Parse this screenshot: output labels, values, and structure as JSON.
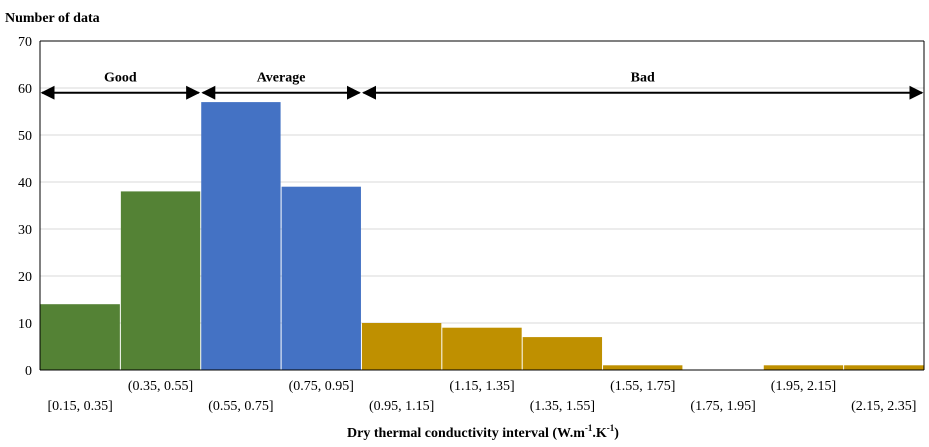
{
  "chart_data": {
    "type": "bar",
    "ylabel": "Number of data",
    "xlabel": "Dry thermal conductivity interval (W.m",
    "xlabel_sup1": "-1",
    "xlabel_mid": ".K",
    "xlabel_sup2": "-1",
    "xlabel_end": ")",
    "ylim": [
      0,
      70
    ],
    "yticks": [
      "0",
      "10",
      "20",
      "30",
      "40",
      "50",
      "60",
      "70"
    ],
    "grid": true,
    "categories": [
      "[0.15, 0.35]",
      "(0.35, 0.55]",
      "(0.55, 0.75]",
      "(0.75, 0.95]",
      "(0.95, 1.15]",
      "(1.15, 1.35]",
      "(1.35, 1.55]",
      "(1.55, 1.75]",
      "(1.75, 1.95]",
      "(1.95, 2.15]",
      "(2.15, 2.35]"
    ],
    "values": [
      14,
      38,
      57,
      39,
      10,
      9,
      7,
      1,
      0,
      1,
      1
    ],
    "groups": [
      {
        "label": "Good",
        "from": 0,
        "to": 2,
        "color": "#548235"
      },
      {
        "label": "Average",
        "from": 2,
        "to": 4,
        "color": "#4472C4"
      },
      {
        "label": "Bad",
        "from": 4,
        "to": 11,
        "color": "#BF9000"
      }
    ],
    "group_arrow_y": 59
  }
}
